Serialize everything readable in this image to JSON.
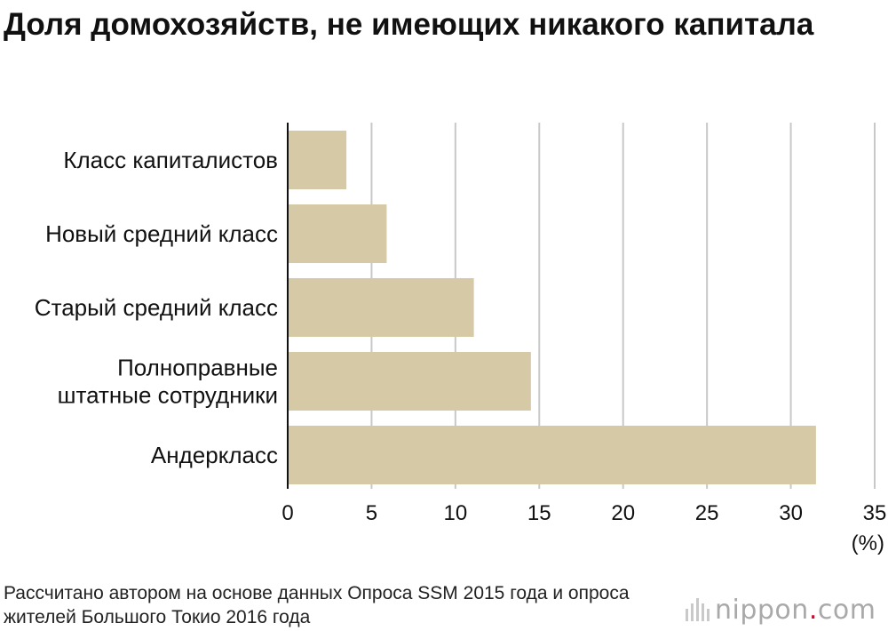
{
  "title": "Доля домохозяйств, не имеющих никакого капитала",
  "source": "Рассчитано автором на основе данных Опроса SSM 2015 года и опроса жителей Большого Токио 2016 года",
  "brand": {
    "name": "nippon",
    "dot": ".",
    "suffix": "com"
  },
  "colors": {
    "bar": "#d5c9a6",
    "grid": "#c8c8c8",
    "axis": "#111111"
  },
  "chart_data": {
    "type": "bar",
    "orientation": "horizontal",
    "categories": [
      "Класс капиталистов",
      "Новый средний класс",
      "Старый средний класс",
      "Полноправные штатные сотрудники",
      "Андеркласс"
    ],
    "category_lines": [
      [
        "Класс капиталистов"
      ],
      [
        "Новый средний класс"
      ],
      [
        "Старый средний класс"
      ],
      [
        "Полноправные",
        "штатные сотрудники"
      ],
      [
        "Андеркласс"
      ]
    ],
    "values": [
      3.5,
      5.9,
      11.1,
      14.5,
      31.5
    ],
    "xlim": [
      0,
      35
    ],
    "xticks": [
      0,
      5,
      10,
      15,
      20,
      25,
      30,
      35
    ],
    "unit": "(%)",
    "grid": true
  }
}
